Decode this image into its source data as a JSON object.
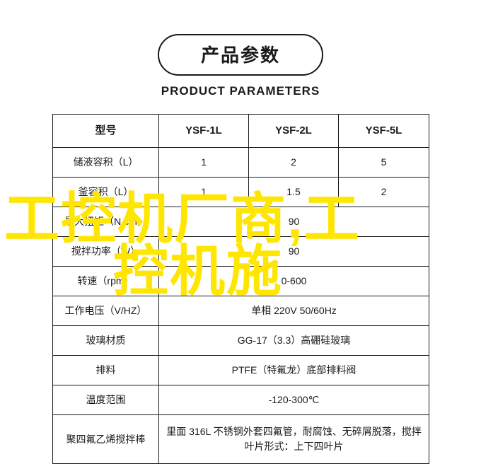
{
  "title": {
    "cn": "产品参数",
    "en": "PRODUCT PARAMETERS"
  },
  "table": {
    "headers": [
      "型号",
      "YSF-1L",
      "YSF-2L",
      "YSF-5L"
    ],
    "rows": [
      {
        "label": "储液容积（L）",
        "cells": [
          "1",
          "2",
          "5"
        ]
      },
      {
        "label": "釜容积（L）",
        "cells": [
          "1",
          "1.5",
          "2"
        ]
      },
      {
        "label": "最大扭矩（N.cm）",
        "span": "90"
      },
      {
        "label": "搅拌功率（W）",
        "span": "90"
      },
      {
        "label": "转速（rpm）",
        "span": "0-600"
      },
      {
        "label": "工作电压（V/HZ）",
        "span": "单相 220V 50/60Hz"
      },
      {
        "label": "玻璃材质",
        "span": "GG-17（3.3）高硼硅玻璃"
      },
      {
        "label": "排料",
        "span": "PTFE（特氟龙）底部排料阀"
      },
      {
        "label": "温度范围",
        "span": "-120-300℃"
      },
      {
        "label": "聚四氟乙烯搅拌棒",
        "span": "里面 316L 不锈钢外套四氟管，耐腐蚀、无碎屑脱落，搅拌叶片形式：上下四叶片",
        "tall": true
      }
    ]
  },
  "overlay": {
    "line1": "工控机厂商,工",
    "line2": "控机施"
  },
  "colors": {
    "text": "#1a1a1a",
    "border": "#1a1a1a",
    "background": "#ffffff",
    "overlay": "#ffe600"
  }
}
